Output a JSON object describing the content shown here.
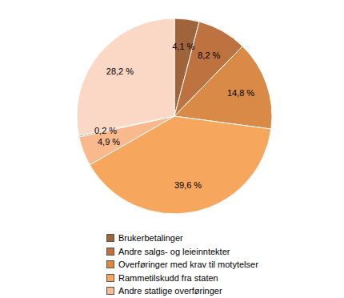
{
  "chart_data": {
    "type": "pie",
    "categories": [
      "Brukerbetalinger",
      "Andre salgs- og leieinntekter",
      "Overføringer med krav til motytelser",
      "Rammetilskudd fra staten",
      "Andre statlige overføringer",
      null,
      null
    ],
    "values": [
      4.1,
      8.2,
      14.8,
      39.6,
      4.9,
      0.2,
      28.2
    ],
    "value_labels": [
      "4,1 %",
      "8,2 %",
      "14,8 %",
      "39,6 %",
      "4,9 %",
      "0,2 %",
      "28,2 %"
    ],
    "colors": [
      "#a0643c",
      "#bd7240",
      "#d98a47",
      "#f7a65e",
      "#f9b98c",
      "#5a3a28",
      "#fbd7c5"
    ],
    "data_labels": true,
    "legend": "bottom"
  }
}
